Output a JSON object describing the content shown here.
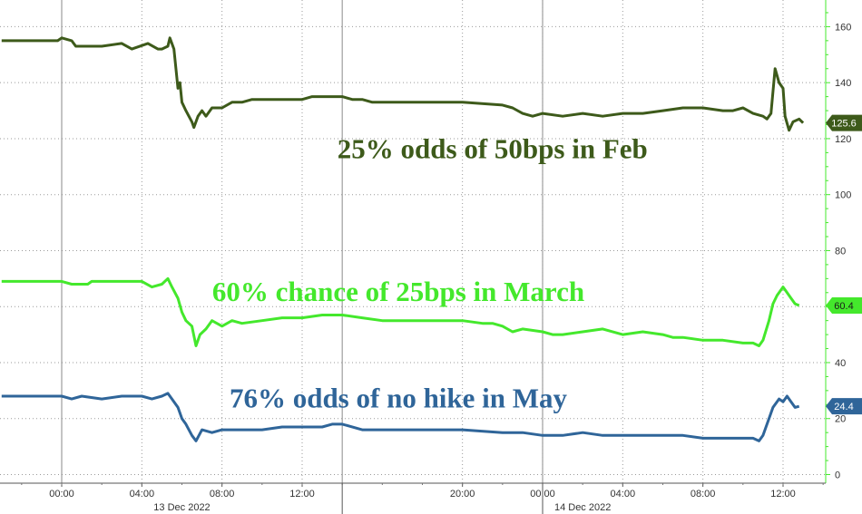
{
  "chart_data": {
    "type": "line",
    "y_axis": {
      "min": 0,
      "max": 170,
      "ticks": [
        0,
        20,
        40,
        60,
        80,
        100,
        120,
        140,
        160
      ],
      "color": "#44e82c"
    },
    "x_axis": {
      "ticks": [
        {
          "t": 0.0,
          "label": "00:00"
        },
        {
          "t": 4.0,
          "label": "04:00"
        },
        {
          "t": 8.0,
          "label": "08:00"
        },
        {
          "t": 12.0,
          "label": "12:00"
        },
        {
          "t": 20.0,
          "label": "20:00"
        },
        {
          "t": 24.0,
          "label": "00:00"
        },
        {
          "t": 28.0,
          "label": "04:00"
        },
        {
          "t": 32.0,
          "label": "08:00"
        },
        {
          "t": 36.0,
          "label": "12:00"
        }
      ],
      "dates": [
        {
          "t": 6.0,
          "label": "13 Dec 2022"
        },
        {
          "t": 26.0,
          "label": "14 Dec 2022"
        }
      ],
      "session_breaks": [
        0.0,
        14.0,
        24.0
      ]
    },
    "grid": true,
    "series": [
      {
        "color": "#3d5a1a",
        "badge": "125.6",
        "last": 125.6,
        "points": [
          [
            -3.0,
            155
          ],
          [
            -0.2,
            155
          ],
          [
            0.0,
            156
          ],
          [
            0.5,
            155
          ],
          [
            0.7,
            153
          ],
          [
            2.0,
            153
          ],
          [
            3.0,
            154
          ],
          [
            3.5,
            152
          ],
          [
            4.3,
            154
          ],
          [
            4.8,
            152
          ],
          [
            5.0,
            152
          ],
          [
            5.3,
            153
          ],
          [
            5.4,
            156
          ],
          [
            5.6,
            152
          ],
          [
            5.8,
            138
          ],
          [
            5.9,
            140
          ],
          [
            6.0,
            133
          ],
          [
            6.2,
            130
          ],
          [
            6.5,
            126
          ],
          [
            6.6,
            124
          ],
          [
            6.8,
            128
          ],
          [
            7.0,
            130
          ],
          [
            7.2,
            128
          ],
          [
            7.5,
            131
          ],
          [
            8.0,
            131
          ],
          [
            8.5,
            133
          ],
          [
            9.0,
            133
          ],
          [
            9.5,
            134
          ],
          [
            12.0,
            134
          ],
          [
            12.5,
            135
          ],
          [
            14.0,
            135
          ],
          [
            14.5,
            134
          ],
          [
            15.0,
            134
          ],
          [
            15.5,
            133
          ],
          [
            20.0,
            133
          ],
          [
            22.0,
            132
          ],
          [
            22.5,
            131
          ],
          [
            23.0,
            129
          ],
          [
            23.5,
            128
          ],
          [
            24.0,
            129
          ],
          [
            25.0,
            128
          ],
          [
            26.0,
            129
          ],
          [
            27.0,
            128
          ],
          [
            28.0,
            129
          ],
          [
            29.0,
            129
          ],
          [
            30.0,
            130
          ],
          [
            31.0,
            131
          ],
          [
            32.0,
            131
          ],
          [
            33.0,
            130
          ],
          [
            33.5,
            130
          ],
          [
            34.0,
            131
          ],
          [
            34.5,
            129
          ],
          [
            35.0,
            128
          ],
          [
            35.2,
            127
          ],
          [
            35.4,
            129
          ],
          [
            35.6,
            145
          ],
          [
            35.8,
            140
          ],
          [
            36.0,
            138
          ],
          [
            36.1,
            128
          ],
          [
            36.3,
            123
          ],
          [
            36.5,
            126
          ],
          [
            36.8,
            127
          ],
          [
            37.0,
            125.6
          ]
        ]
      },
      {
        "color": "#44e82c",
        "badge": "60.4",
        "last": 60.4,
        "points": [
          [
            -3.0,
            69
          ],
          [
            0.0,
            69
          ],
          [
            0.5,
            68
          ],
          [
            1.3,
            68
          ],
          [
            1.5,
            69
          ],
          [
            4.0,
            69
          ],
          [
            4.5,
            67
          ],
          [
            5.0,
            68
          ],
          [
            5.3,
            70
          ],
          [
            5.5,
            67
          ],
          [
            5.8,
            63
          ],
          [
            6.0,
            58
          ],
          [
            6.2,
            55
          ],
          [
            6.5,
            53
          ],
          [
            6.7,
            46
          ],
          [
            6.9,
            50
          ],
          [
            7.2,
            52
          ],
          [
            7.5,
            55
          ],
          [
            8.0,
            53
          ],
          [
            8.5,
            55
          ],
          [
            9.0,
            54
          ],
          [
            10.0,
            55
          ],
          [
            11.0,
            56
          ],
          [
            12.0,
            56
          ],
          [
            13.0,
            57
          ],
          [
            14.0,
            57
          ],
          [
            15.0,
            56
          ],
          [
            16.0,
            55
          ],
          [
            18.0,
            55
          ],
          [
            20.0,
            55
          ],
          [
            21.0,
            54
          ],
          [
            21.5,
            54
          ],
          [
            22.0,
            53
          ],
          [
            22.5,
            51
          ],
          [
            23.0,
            52
          ],
          [
            24.0,
            51
          ],
          [
            24.5,
            50
          ],
          [
            25.0,
            50
          ],
          [
            26.0,
            51
          ],
          [
            27.0,
            52
          ],
          [
            28.0,
            50
          ],
          [
            29.0,
            51
          ],
          [
            30.0,
            50
          ],
          [
            30.5,
            49
          ],
          [
            31.0,
            49
          ],
          [
            32.0,
            48
          ],
          [
            33.0,
            48
          ],
          [
            34.0,
            47
          ],
          [
            34.5,
            47
          ],
          [
            34.8,
            46
          ],
          [
            35.0,
            48
          ],
          [
            35.3,
            55
          ],
          [
            35.5,
            61
          ],
          [
            35.7,
            64
          ],
          [
            36.0,
            67
          ],
          [
            36.2,
            65
          ],
          [
            36.4,
            63
          ],
          [
            36.6,
            61
          ],
          [
            36.8,
            60.4
          ]
        ]
      },
      {
        "color": "#2f6599",
        "badge": "24.4",
        "last": 24.4,
        "points": [
          [
            -3.0,
            28
          ],
          [
            0.0,
            28
          ],
          [
            0.5,
            27
          ],
          [
            1.0,
            28
          ],
          [
            2.0,
            27
          ],
          [
            3.0,
            28
          ],
          [
            4.0,
            28
          ],
          [
            4.5,
            27
          ],
          [
            5.0,
            28
          ],
          [
            5.3,
            29
          ],
          [
            5.5,
            27
          ],
          [
            5.8,
            24
          ],
          [
            6.0,
            20
          ],
          [
            6.2,
            18
          ],
          [
            6.5,
            14
          ],
          [
            6.7,
            12
          ],
          [
            7.0,
            16
          ],
          [
            7.5,
            15
          ],
          [
            8.0,
            16
          ],
          [
            9.0,
            16
          ],
          [
            10.0,
            16
          ],
          [
            11.0,
            17
          ],
          [
            12.0,
            17
          ],
          [
            13.0,
            17
          ],
          [
            13.5,
            18
          ],
          [
            14.0,
            18
          ],
          [
            15.0,
            16
          ],
          [
            16.0,
            16
          ],
          [
            18.0,
            16
          ],
          [
            20.0,
            16
          ],
          [
            22.0,
            15
          ],
          [
            23.0,
            15
          ],
          [
            24.0,
            14
          ],
          [
            25.0,
            14
          ],
          [
            26.0,
            15
          ],
          [
            27.0,
            14
          ],
          [
            28.0,
            14
          ],
          [
            29.0,
            14
          ],
          [
            30.0,
            14
          ],
          [
            31.0,
            14
          ],
          [
            32.0,
            13
          ],
          [
            33.0,
            13
          ],
          [
            34.0,
            13
          ],
          [
            34.5,
            13
          ],
          [
            34.8,
            12
          ],
          [
            35.0,
            14
          ],
          [
            35.3,
            20
          ],
          [
            35.5,
            24
          ],
          [
            35.8,
            27
          ],
          [
            36.0,
            26
          ],
          [
            36.2,
            28
          ],
          [
            36.4,
            26
          ],
          [
            36.6,
            24
          ],
          [
            36.8,
            24.4
          ]
        ]
      }
    ],
    "annotations": [
      {
        "text": "25% odds of 50bps in Feb",
        "color": "#3d5a1a",
        "at_t": 21.5,
        "at_v": 113
      },
      {
        "text": "60% chance of 25bps in March",
        "color": "#44e82c",
        "at_t": 16.8,
        "at_v": 62
      },
      {
        "text": "76% odds of no hike in May",
        "color": "#2f6599",
        "at_t": 16.8,
        "at_v": 24
      }
    ]
  }
}
